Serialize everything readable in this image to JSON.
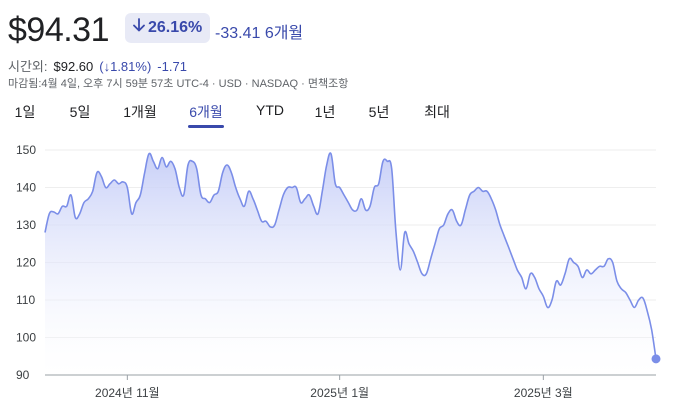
{
  "header": {
    "price": "$94.31",
    "change_pct": "26.16%",
    "change_abs": "-33.41 6개월"
  },
  "after_hours": {
    "label": "시간외:",
    "price": "$92.60",
    "change_pct": "(↓1.81%)",
    "change_abs": "-1.71"
  },
  "meta": "마감됨:4월 4일, 오후 7시 59분 57초 UTC-4 · USD · NASDAQ · 면책조항",
  "tabs": [
    {
      "label": "1일",
      "active": false
    },
    {
      "label": "5일",
      "active": false
    },
    {
      "label": "1개월",
      "active": false
    },
    {
      "label": "6개월",
      "active": true
    },
    {
      "label": "YTD",
      "active": false
    },
    {
      "label": "1년",
      "active": false
    },
    {
      "label": "5년",
      "active": false
    },
    {
      "label": "최대",
      "active": false
    }
  ],
  "colors": {
    "accent": "#3949ab",
    "line": "#7b8ee8",
    "fill_top": "#c5cdf7",
    "grid": "#eeeeee"
  },
  "chart_data": {
    "type": "area",
    "title": "",
    "xlabel": "",
    "ylabel": "",
    "ylim": [
      90,
      150
    ],
    "yticks": [
      150,
      140,
      130,
      120,
      110,
      100,
      90
    ],
    "xticks": [
      {
        "label": "2024년 11월",
        "x": 19
      },
      {
        "label": "2025년 1월",
        "x": 68
      },
      {
        "label": "2025년 3월",
        "x": 115
      }
    ],
    "x_range": [
      0,
      150
    ],
    "grid": true,
    "end_marker": true,
    "series": [
      {
        "values": [
          [
            0,
            128
          ],
          [
            1,
            133
          ],
          [
            2,
            133.5
          ],
          [
            3,
            133
          ],
          [
            4,
            135
          ],
          [
            5,
            135
          ],
          [
            6,
            138
          ],
          [
            7,
            132
          ],
          [
            8,
            133
          ],
          [
            9,
            136
          ],
          [
            10,
            137
          ],
          [
            11,
            139
          ],
          [
            12,
            144
          ],
          [
            13,
            143
          ],
          [
            14,
            140
          ],
          [
            15,
            141
          ],
          [
            16,
            142
          ],
          [
            17,
            141
          ],
          [
            18,
            141.5
          ],
          [
            19,
            140
          ],
          [
            20,
            133
          ],
          [
            21,
            136
          ],
          [
            22,
            138
          ],
          [
            23,
            144
          ],
          [
            24,
            149
          ],
          [
            25,
            147
          ],
          [
            26,
            145
          ],
          [
            27,
            148
          ],
          [
            28,
            145.5
          ],
          [
            29,
            147
          ],
          [
            30,
            145
          ],
          [
            31,
            140
          ],
          [
            32,
            138
          ],
          [
            33,
            146
          ],
          [
            34,
            147
          ],
          [
            35,
            145
          ],
          [
            36,
            138
          ],
          [
            37,
            137
          ],
          [
            38,
            136
          ],
          [
            39,
            138
          ],
          [
            40,
            139
          ],
          [
            41,
            144
          ],
          [
            42,
            146
          ],
          [
            43,
            144
          ],
          [
            44,
            140
          ],
          [
            45,
            137
          ],
          [
            46,
            135
          ],
          [
            47,
            139
          ],
          [
            48,
            137
          ],
          [
            49,
            134
          ],
          [
            50,
            131
          ],
          [
            51,
            131
          ],
          [
            52,
            129.5
          ],
          [
            53,
            130
          ],
          [
            54,
            134
          ],
          [
            55,
            138
          ],
          [
            56,
            140
          ],
          [
            57,
            140
          ],
          [
            58,
            140
          ],
          [
            59,
            136
          ],
          [
            60,
            137
          ],
          [
            61,
            138
          ],
          [
            62,
            135
          ],
          [
            63,
            133
          ],
          [
            64,
            139
          ],
          [
            65,
            146
          ],
          [
            66,
            149
          ],
          [
            67,
            141
          ],
          [
            68,
            140
          ],
          [
            69,
            138
          ],
          [
            70,
            136
          ],
          [
            71,
            134
          ],
          [
            72,
            134
          ],
          [
            73,
            137
          ],
          [
            74,
            134
          ],
          [
            75,
            135
          ],
          [
            76,
            140
          ],
          [
            77,
            141
          ],
          [
            78,
            147
          ],
          [
            79,
            147
          ],
          [
            80,
            145
          ],
          [
            81,
            128
          ],
          [
            82,
            118
          ],
          [
            83,
            128
          ],
          [
            84,
            125
          ],
          [
            85,
            123
          ],
          [
            86,
            120
          ],
          [
            87,
            117
          ],
          [
            88,
            117
          ],
          [
            89,
            121
          ],
          [
            90,
            125
          ],
          [
            91,
            129
          ],
          [
            92,
            130
          ],
          [
            93,
            133
          ],
          [
            94,
            134
          ],
          [
            95,
            131
          ],
          [
            96,
            130
          ],
          [
            97,
            134
          ],
          [
            98,
            138
          ],
          [
            99,
            139
          ],
          [
            100,
            140
          ],
          [
            101,
            139
          ],
          [
            102,
            139
          ],
          [
            103,
            137
          ],
          [
            104,
            134
          ],
          [
            105,
            130
          ],
          [
            106,
            127
          ],
          [
            107,
            124
          ],
          [
            108,
            121
          ],
          [
            109,
            118
          ],
          [
            110,
            116
          ],
          [
            111,
            113
          ],
          [
            112,
            117
          ],
          [
            113,
            116
          ],
          [
            114,
            113
          ],
          [
            115,
            111
          ],
          [
            116,
            108
          ],
          [
            117,
            110
          ],
          [
            118,
            115
          ],
          [
            119,
            114
          ],
          [
            120,
            117
          ],
          [
            121,
            121
          ],
          [
            122,
            120
          ],
          [
            123,
            119
          ],
          [
            124,
            116
          ],
          [
            125,
            118
          ],
          [
            126,
            117
          ],
          [
            127,
            118
          ],
          [
            128,
            119
          ],
          [
            129,
            119
          ],
          [
            130,
            121
          ],
          [
            131,
            120
          ],
          [
            132,
            115
          ],
          [
            133,
            113
          ],
          [
            134,
            112
          ],
          [
            135,
            110
          ],
          [
            136,
            108
          ],
          [
            137,
            110
          ],
          [
            138,
            110.5
          ],
          [
            139,
            107
          ],
          [
            140,
            102
          ],
          [
            141,
            94.3
          ]
        ]
      }
    ]
  }
}
